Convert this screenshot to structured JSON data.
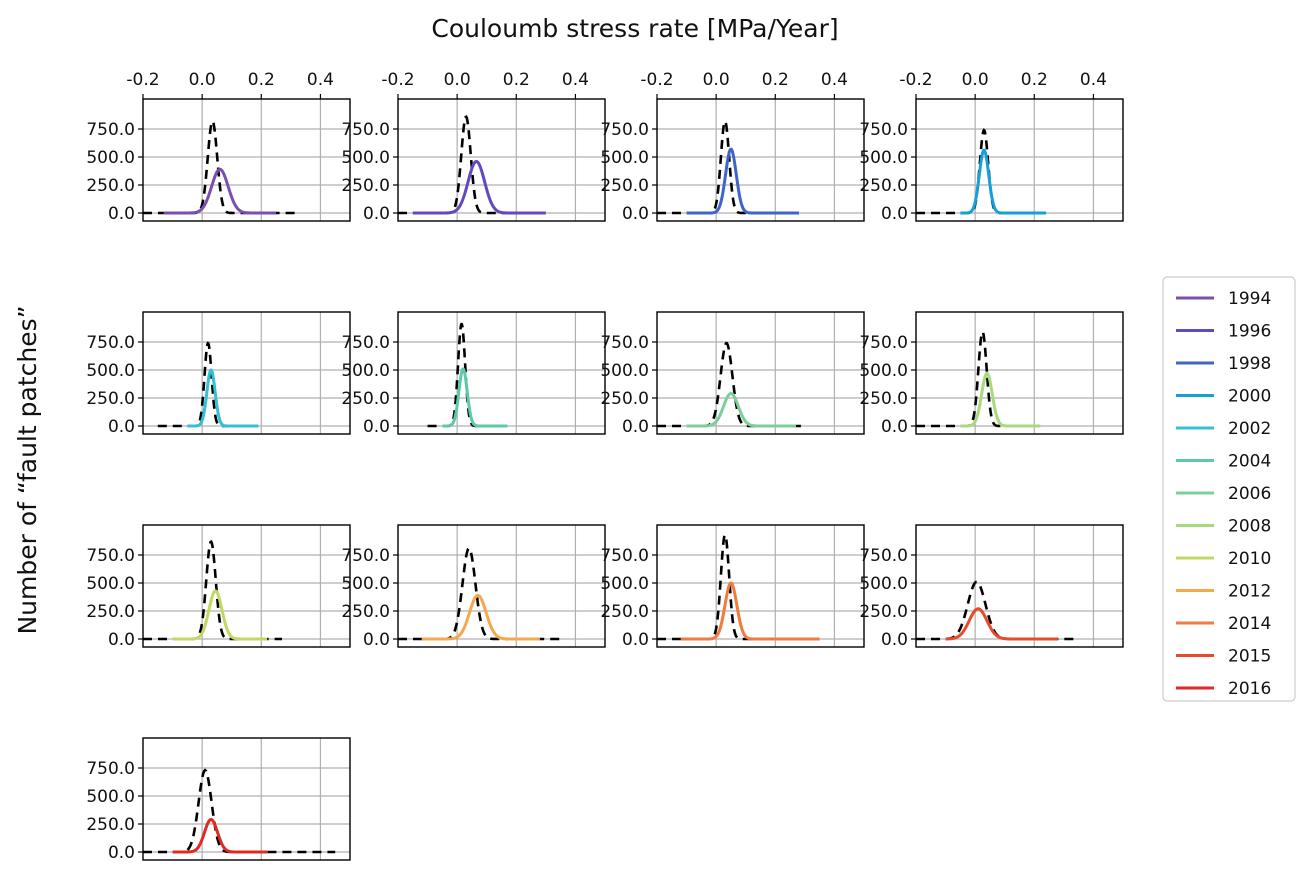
{
  "figure": {
    "top_xlabel": "Couloumb stress rate [MPa/Year]",
    "ylabel": "Number of “fault patches”"
  },
  "chart_data": {
    "type": "line",
    "xlim": [
      -0.2,
      0.5
    ],
    "ylim": [
      0,
      1000
    ],
    "x_ticks": [
      -0.2,
      0.0,
      0.2,
      0.4
    ],
    "x_tick_labels": [
      "-0.2",
      "0.0",
      "0.2",
      "0.4"
    ],
    "y_ticks": [
      0,
      250,
      500,
      750
    ],
    "y_tick_labels": [
      "0.0",
      "250.0",
      "500.0",
      "750.0"
    ],
    "grid": true,
    "legend_position": "right",
    "reference_line_style": "dashed black",
    "panels": [
      {
        "year": "1994",
        "color": "#7b4fb0",
        "ref": {
          "peak": 0.035,
          "height": 820,
          "width": 0.016,
          "from": -0.2,
          "to": 0.33
        },
        "curve": {
          "peak": 0.06,
          "height": 390,
          "width": 0.028,
          "from": -0.13,
          "to": 0.25
        }
      },
      {
        "year": "1996",
        "color": "#6448c2",
        "ref": {
          "peak": 0.03,
          "height": 860,
          "width": 0.016,
          "from": -0.2,
          "to": 0.27
        },
        "curve": {
          "peak": 0.065,
          "height": 460,
          "width": 0.028,
          "from": -0.15,
          "to": 0.3
        }
      },
      {
        "year": "1998",
        "color": "#3f66c6",
        "ref": {
          "peak": 0.03,
          "height": 820,
          "width": 0.014,
          "from": -0.2,
          "to": 0.25
        },
        "curve": {
          "peak": 0.05,
          "height": 570,
          "width": 0.018,
          "from": -0.1,
          "to": 0.28
        }
      },
      {
        "year": "2000",
        "color": "#16a0d8",
        "ref": {
          "peak": 0.03,
          "height": 740,
          "width": 0.014,
          "from": -0.2,
          "to": 0.18
        },
        "curve": {
          "peak": 0.03,
          "height": 560,
          "width": 0.016,
          "from": -0.05,
          "to": 0.24
        }
      },
      {
        "year": "2002",
        "color": "#34c0d2",
        "ref": {
          "peak": 0.02,
          "height": 740,
          "width": 0.012,
          "from": -0.15,
          "to": 0.18
        },
        "curve": {
          "peak": 0.03,
          "height": 500,
          "width": 0.014,
          "from": -0.05,
          "to": 0.19
        }
      },
      {
        "year": "2004",
        "color": "#5cc9aa",
        "ref": {
          "peak": 0.015,
          "height": 910,
          "width": 0.012,
          "from": -0.1,
          "to": 0.14
        },
        "curve": {
          "peak": 0.02,
          "height": 510,
          "width": 0.014,
          "from": -0.05,
          "to": 0.17
        }
      },
      {
        "year": "2006",
        "color": "#7ccf98",
        "ref": {
          "peak": 0.035,
          "height": 740,
          "width": 0.02,
          "from": -0.2,
          "to": 0.3
        },
        "curve": {
          "peak": 0.05,
          "height": 290,
          "width": 0.025,
          "from": -0.1,
          "to": 0.27
        }
      },
      {
        "year": "2008",
        "color": "#a8d97c",
        "ref": {
          "peak": 0.025,
          "height": 840,
          "width": 0.014,
          "from": -0.2,
          "to": 0.19
        },
        "curve": {
          "peak": 0.04,
          "height": 470,
          "width": 0.018,
          "from": -0.05,
          "to": 0.22
        }
      },
      {
        "year": "2010",
        "color": "#c0d864",
        "ref": {
          "peak": 0.03,
          "height": 870,
          "width": 0.016,
          "from": -0.2,
          "to": 0.27
        },
        "curve": {
          "peak": 0.045,
          "height": 430,
          "width": 0.022,
          "from": -0.1,
          "to": 0.22
        }
      },
      {
        "year": "2012",
        "color": "#f5a84c",
        "ref": {
          "peak": 0.04,
          "height": 810,
          "width": 0.022,
          "from": -0.2,
          "to": 0.35
        },
        "curve": {
          "peak": 0.07,
          "height": 390,
          "width": 0.028,
          "from": -0.12,
          "to": 0.28
        }
      },
      {
        "year": "2014",
        "color": "#f27a3e",
        "ref": {
          "peak": 0.03,
          "height": 930,
          "width": 0.014,
          "from": -0.2,
          "to": 0.2
        },
        "curve": {
          "peak": 0.05,
          "height": 500,
          "width": 0.02,
          "from": -0.12,
          "to": 0.35
        }
      },
      {
        "year": "2015",
        "color": "#e84a2a",
        "ref": {
          "peak": 0.005,
          "height": 510,
          "width": 0.03,
          "from": -0.2,
          "to": 0.34
        },
        "curve": {
          "peak": 0.01,
          "height": 270,
          "width": 0.03,
          "from": -0.1,
          "to": 0.28
        }
      },
      {
        "year": "2016",
        "color": "#e02a24",
        "ref": {
          "peak": 0.01,
          "height": 730,
          "width": 0.022,
          "from": -0.2,
          "to": 0.45
        },
        "curve": {
          "peak": 0.03,
          "height": 290,
          "width": 0.022,
          "from": -0.1,
          "to": 0.22
        }
      }
    ]
  }
}
